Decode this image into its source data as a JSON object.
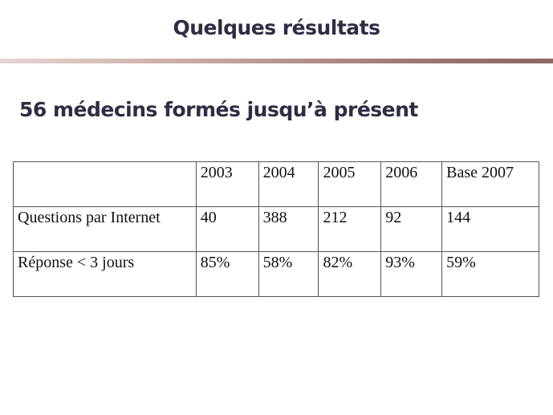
{
  "slide": {
    "title": "Quelques résultats",
    "subtitle": "56 médecins formés jusqu’à présent"
  },
  "table": {
    "header": [
      "",
      "2003",
      "2004",
      "2005",
      "2006",
      "Base 2007"
    ],
    "rows": [
      {
        "label": "Questions par Internet",
        "values": [
          "40",
          "388",
          "212",
          "92",
          "144"
        ]
      },
      {
        "label": "Réponse < 3 jours",
        "values": [
          "85%",
          "58%",
          "82%",
          "93%",
          "59%"
        ]
      }
    ]
  },
  "colors": {
    "title_text": "#2d2d45",
    "divider_start": "#e6d6d3",
    "divider_end": "#8b6762",
    "table_border": "#555555"
  }
}
